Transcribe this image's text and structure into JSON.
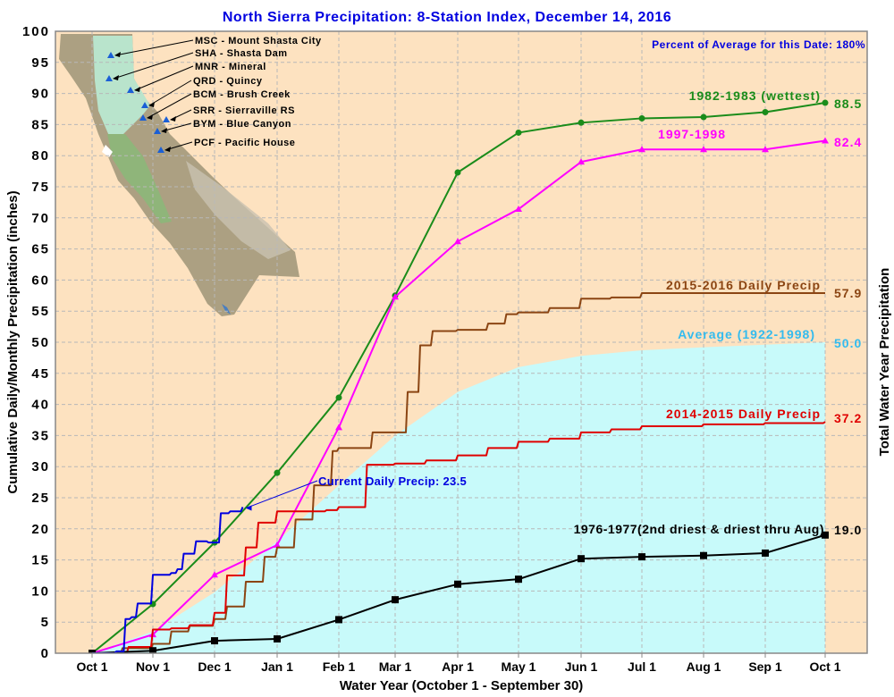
{
  "chart_data": {
    "type": "line",
    "title": "North Sierra Precipitation: 8-Station Index, December 14, 2016",
    "xlabel": "Water Year (October 1 - September 30)",
    "ylabel": "Cumulative Daily/Monthly Precipitation (inches)",
    "ylabel_right": "Total Water Year Precipitation",
    "ylim": [
      0,
      100
    ],
    "yticks": [
      "0",
      "5",
      "10",
      "15",
      "20",
      "25",
      "30",
      "35",
      "40",
      "45",
      "50",
      "55",
      "60",
      "65",
      "70",
      "75",
      "80",
      "85",
      "90",
      "95",
      "100"
    ],
    "xticks": [
      "Oct 1",
      "Nov 1",
      "Dec 1",
      "Jan 1",
      "Feb 1",
      "Mar 1",
      "Apr 1",
      "May 1",
      "Jun 1",
      "Jul 1",
      "Aug 1",
      "Sep 1",
      "Oct 1"
    ],
    "grid": true,
    "annotation_percent": "Percent of Average for this Date: 180%",
    "series": [
      {
        "name": "1982-1983 (wettest)",
        "total": "88.5",
        "color": "#1a8c1a",
        "marker": "circle",
        "x": [
          0,
          1,
          2,
          3,
          4,
          5,
          6,
          7,
          8,
          9,
          10,
          11,
          12
        ],
        "values": [
          0,
          7.9,
          17.8,
          29.0,
          41.1,
          57.5,
          77.3,
          83.7,
          85.3,
          86.0,
          86.2,
          87.0,
          88.5
        ]
      },
      {
        "name": "1997-1998",
        "total": "82.4",
        "color": "#ff00ff",
        "marker": "triangle",
        "x": [
          0,
          1,
          2,
          3,
          4,
          5,
          6,
          7,
          8,
          9,
          10,
          11,
          12
        ],
        "values": [
          0,
          3.0,
          12.6,
          17.4,
          36.3,
          57.3,
          66.2,
          71.4,
          79.0,
          81.0,
          81.0,
          81.0,
          82.4
        ]
      },
      {
        "name": "2015-2016 Daily Precip",
        "total": "57.9",
        "color": "#8b4513",
        "marker": "none",
        "x": [
          0,
          0.5,
          1,
          1.3,
          1.6,
          2,
          2.2,
          2.5,
          2.8,
          3,
          3.3,
          3.6,
          3.9,
          4,
          4.3,
          4.6,
          5,
          5.2,
          5.4,
          5.6,
          6,
          6.5,
          6.8,
          7,
          7.5,
          8,
          8.5,
          9,
          12
        ],
        "values": [
          0,
          0.8,
          1.5,
          3.5,
          4.4,
          5.5,
          7.5,
          11.5,
          15.5,
          17.0,
          21.5,
          27.0,
          32.5,
          33.0,
          33.0,
          35.5,
          35.5,
          42,
          49.5,
          51.8,
          52.0,
          53.0,
          54.5,
          54.8,
          55.5,
          57.0,
          57.2,
          57.9,
          57.9
        ]
      },
      {
        "name": "2014-2015 Daily Precip",
        "total": "37.2",
        "color": "#e00000",
        "marker": "none",
        "x": [
          0,
          0.6,
          1,
          1.3,
          1.6,
          2,
          2.2,
          2.5,
          2.7,
          3,
          3.5,
          3.8,
          4,
          4.5,
          5,
          5.5,
          6,
          6.5,
          7,
          7.5,
          8,
          8.5,
          9,
          10,
          11,
          12
        ],
        "values": [
          0,
          1.0,
          3.8,
          4.0,
          4.5,
          6.5,
          12.5,
          17.0,
          21.0,
          22.8,
          22.8,
          23.0,
          23.5,
          30.3,
          30.5,
          31.0,
          31.8,
          33.0,
          34.0,
          34.5,
          35.5,
          36.0,
          36.5,
          36.8,
          37.0,
          37.2
        ]
      },
      {
        "name": "Average (1922-1998)",
        "total": "50.0",
        "color": "#33bbee",
        "fill": "#c8fafa",
        "marker": "none",
        "x": [
          0,
          1,
          2,
          3,
          4,
          5,
          6,
          7,
          8,
          9,
          10,
          11,
          12
        ],
        "values": [
          0,
          3.5,
          9.8,
          18.0,
          27.0,
          35.0,
          42.0,
          46.0,
          47.8,
          48.7,
          49.2,
          49.6,
          50.0
        ]
      },
      {
        "name": "1976-1977(2nd driest & driest thru Aug)",
        "total": "19.0",
        "color": "#000000",
        "marker": "square",
        "x": [
          0,
          1,
          2,
          3,
          4,
          5,
          6,
          7,
          8,
          9,
          10,
          11,
          12
        ],
        "values": [
          0,
          0.4,
          2.0,
          2.3,
          5.4,
          8.6,
          11.1,
          11.9,
          15.2,
          15.5,
          15.7,
          16.1,
          19.0
        ]
      },
      {
        "name": "Current Daily Precip: 23.5",
        "total": "23.5",
        "color": "#0000e0",
        "marker": "none",
        "x": [
          0,
          0.4,
          0.55,
          0.65,
          0.75,
          1,
          1.3,
          1.4,
          1.5,
          1.7,
          1.9,
          2.1,
          2.25,
          2.45
        ],
        "values": [
          0,
          0.3,
          5.5,
          5.8,
          8.0,
          12.6,
          12.9,
          13.5,
          16.0,
          18.0,
          17.8,
          22.5,
          22.8,
          23.5
        ]
      }
    ],
    "stations": [
      "MSC - Mount Shasta City",
      "SHA - Shasta Dam",
      "MNR - Mineral",
      "QRD - Quincy",
      "BCM - Brush Creek",
      "SRR - Sierraville RS",
      "BYM - Blue Canyon",
      "PCF - Pacific House"
    ]
  }
}
